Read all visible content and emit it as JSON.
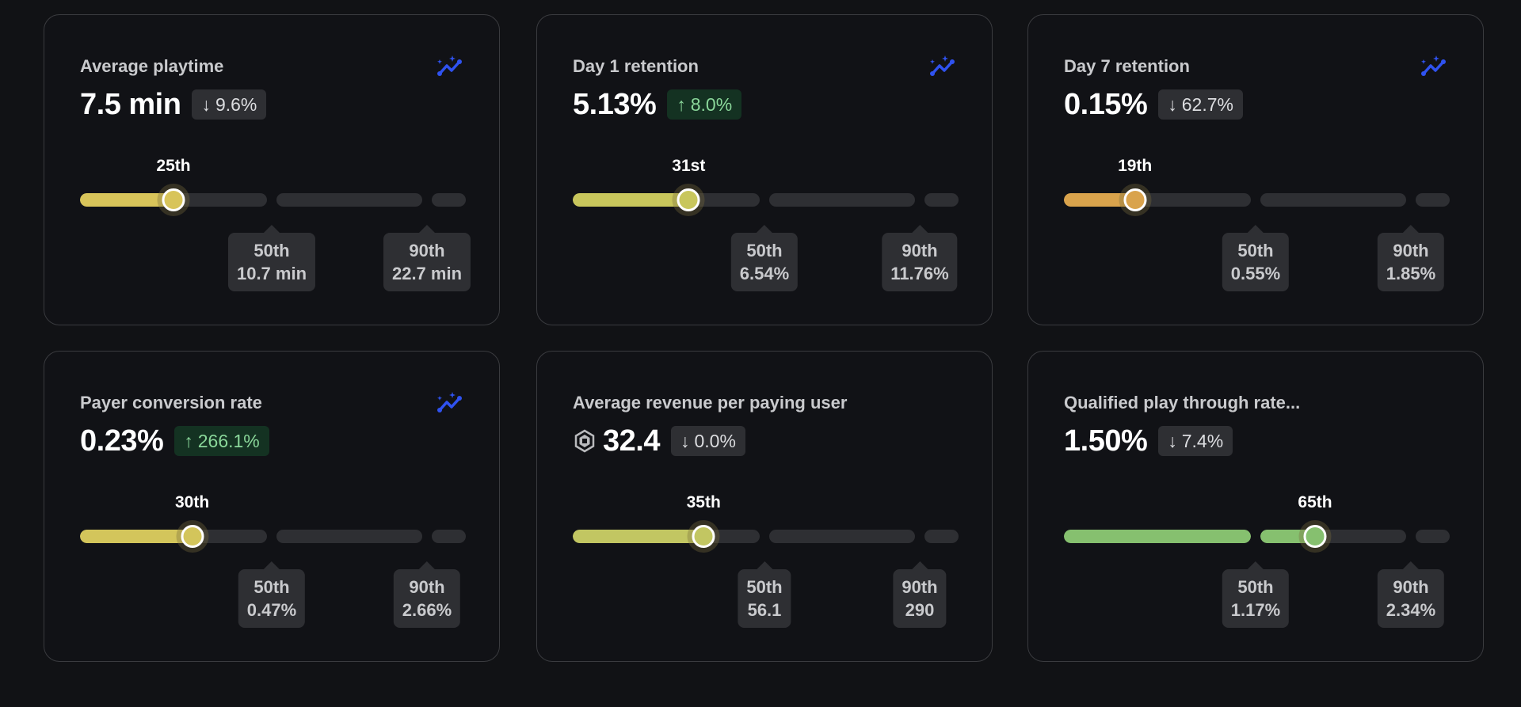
{
  "colors": {
    "background": "#111215",
    "card": "#111216",
    "track": "#2e2f33",
    "insight_icon": "#2f52f0",
    "badge_up_text": "#8ad79a"
  },
  "cards": [
    {
      "title": "Average playtime",
      "value": "7.5 min",
      "change": {
        "direction": "down",
        "text": "9.6%"
      },
      "has_insight_icon": true,
      "has_robux_icon": false,
      "percentile": 25,
      "percentile_label": "25th",
      "fill_color": "#d8c45a",
      "benchmarks": [
        {
          "label": "50th",
          "value": "10.7 min"
        },
        {
          "label": "90th",
          "value": "22.7 min"
        }
      ]
    },
    {
      "title": "Day 1 retention",
      "value": "5.13%",
      "change": {
        "direction": "up",
        "text": "8.0%"
      },
      "has_insight_icon": true,
      "has_robux_icon": false,
      "percentile": 31,
      "percentile_label": "31st",
      "fill_color": "#c8c65c",
      "benchmarks": [
        {
          "label": "50th",
          "value": "6.54%"
        },
        {
          "label": "90th",
          "value": "11.76%"
        }
      ]
    },
    {
      "title": "Day 7 retention",
      "value": "0.15%",
      "change": {
        "direction": "down",
        "text": "62.7%"
      },
      "has_insight_icon": true,
      "has_robux_icon": false,
      "percentile": 19,
      "percentile_label": "19th",
      "fill_color": "#d9a34c",
      "benchmarks": [
        {
          "label": "50th",
          "value": "0.55%"
        },
        {
          "label": "90th",
          "value": "1.85%"
        }
      ]
    },
    {
      "title": "Payer conversion rate",
      "value": "0.23%",
      "change": {
        "direction": "up",
        "text": "266.1%"
      },
      "has_insight_icon": true,
      "has_robux_icon": false,
      "percentile": 30,
      "percentile_label": "30th",
      "fill_color": "#d3c55b",
      "benchmarks": [
        {
          "label": "50th",
          "value": "0.47%"
        },
        {
          "label": "90th",
          "value": "2.66%"
        }
      ]
    },
    {
      "title": "Average revenue per paying user",
      "value": "32.4",
      "change": {
        "direction": "down",
        "text": "0.0%"
      },
      "has_insight_icon": false,
      "has_robux_icon": true,
      "percentile": 35,
      "percentile_label": "35th",
      "fill_color": "#c2c662",
      "benchmarks": [
        {
          "label": "50th",
          "value": "56.1"
        },
        {
          "label": "90th",
          "value": "290"
        }
      ]
    },
    {
      "title": "Qualified play through rate...",
      "value": "1.50%",
      "change": {
        "direction": "down",
        "text": "7.4%"
      },
      "has_insight_icon": false,
      "has_robux_icon": false,
      "percentile": 65,
      "percentile_label": "65th",
      "fill_color": "#86c06f",
      "benchmarks": [
        {
          "label": "50th",
          "value": "1.17%"
        },
        {
          "label": "90th",
          "value": "2.34%"
        }
      ]
    }
  ]
}
